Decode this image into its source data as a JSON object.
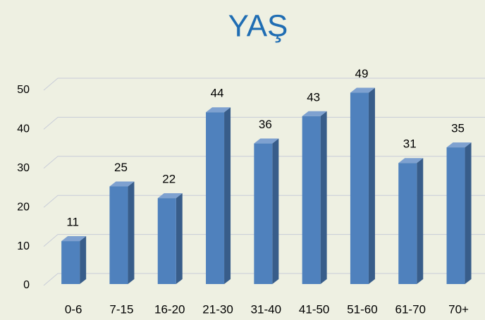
{
  "chart_data": {
    "type": "bar3d",
    "title": "YAŞ",
    "categories": [
      "0-6",
      "7-15",
      "16-20",
      "21-30",
      "31-40",
      "41-50",
      "51-60",
      "61-70",
      "70+"
    ],
    "values": [
      11,
      25,
      22,
      44,
      36,
      43,
      49,
      31,
      35
    ],
    "color": "#4f81bd",
    "ylim": [
      0,
      50
    ],
    "yticks": [
      0,
      10,
      20,
      30,
      40,
      50
    ],
    "grid": true
  }
}
